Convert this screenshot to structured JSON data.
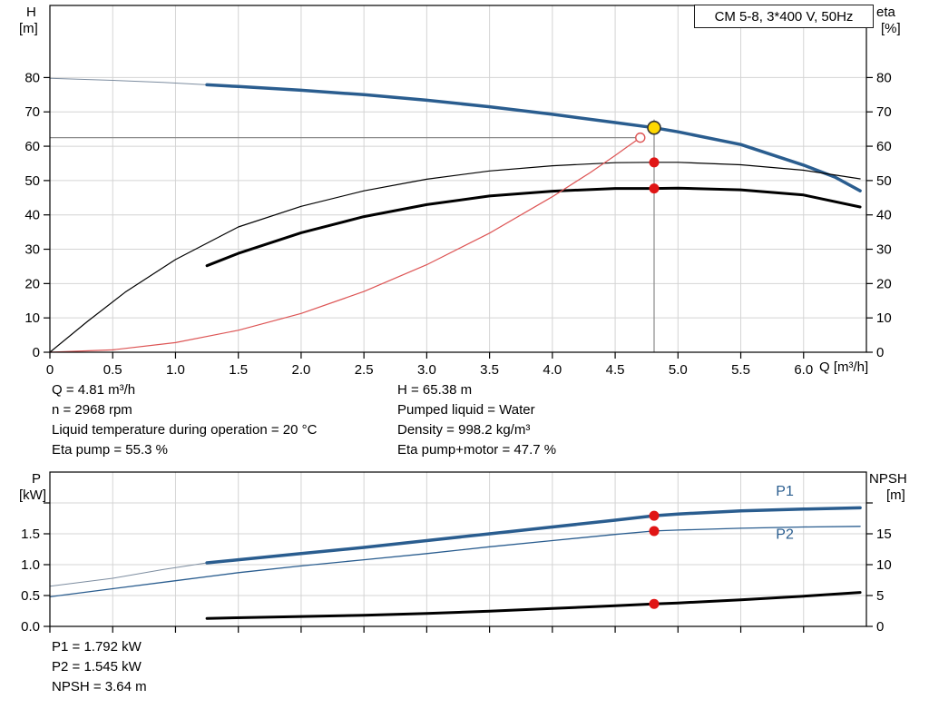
{
  "pump_title": "CM 5-8, 3*400 V, 50Hz",
  "colors": {
    "curve_blue": "#2a5d8f",
    "curve_lead_gray": "#7d8da0",
    "curve_black": "#000000",
    "system_curve_red": "#dd5555",
    "marker_red": "#e01515",
    "marker_yellow": "#ffd800",
    "reference_gray": "#8a8a8a",
    "grid_gray": "#d4d4d4"
  },
  "chart_data": [
    {
      "type": "line",
      "name": "head-efficiency-chart",
      "title": "CM 5-8, 3*400 V, 50Hz",
      "x_axis_label": "Q [m³/h]",
      "x_min": 0,
      "x_max": 6.5,
      "x_ticks": [
        0,
        0.5,
        1,
        1.5,
        2,
        2.5,
        3,
        3.5,
        4,
        4.5,
        5,
        5.5,
        6
      ],
      "x_tick_labels": [
        "0",
        "0.5",
        "1.0",
        "1.5",
        "2.0",
        "2.5",
        "3.0",
        "3.5",
        "4.0",
        "4.5",
        "5.0",
        "5.5",
        "6.0"
      ],
      "left_axis": {
        "label": "H",
        "unit": "[m]",
        "min": 0,
        "max": 101,
        "ticks": [
          0,
          10,
          20,
          30,
          40,
          50,
          60,
          70,
          80
        ],
        "tick_labels": [
          "0",
          "10",
          "20",
          "30",
          "40",
          "50",
          "60",
          "70",
          "80"
        ]
      },
      "right_axis": {
        "label": "eta",
        "unit": "[%]",
        "min": 0,
        "max": 101,
        "ticks": [
          0,
          10,
          20,
          30,
          40,
          50,
          60,
          70,
          80
        ],
        "tick_labels": [
          "0",
          "10",
          "20",
          "30",
          "40",
          "50",
          "60",
          "70",
          "80"
        ]
      },
      "grid": true,
      "legend_position": "none",
      "ref_lines": [
        {
          "orient": "h",
          "axis": "left",
          "value": 62.5,
          "x1": 0,
          "x2": 4.7,
          "color": "#8a8a8a",
          "width": 1.2
        },
        {
          "orient": "v",
          "axis": "left",
          "x": 4.81,
          "v1": 0,
          "v2": 67.8,
          "color": "#8a8a8a",
          "width": 1.2
        }
      ],
      "series": [
        {
          "name": "head-curve-lead",
          "axis": "left",
          "color": "#7d8da0",
          "width": 1,
          "points": [
            [
              0,
              79.8
            ],
            [
              0.5,
              79.2
            ],
            [
              0.9,
              78.6
            ],
            [
              1.25,
              77.9
            ]
          ]
        },
        {
          "name": "head-curve",
          "axis": "left",
          "color": "#2a5d8f",
          "width": 3.5,
          "points": [
            [
              1.25,
              77.9
            ],
            [
              1.5,
              77.4
            ],
            [
              2,
              76.3
            ],
            [
              2.5,
              75
            ],
            [
              3,
              73.4
            ],
            [
              3.5,
              71.5
            ],
            [
              4,
              69.3
            ],
            [
              4.5,
              66.9
            ],
            [
              4.81,
              65.38
            ],
            [
              5,
              64.2
            ],
            [
              5.5,
              60.5
            ],
            [
              6,
              54.5
            ],
            [
              6.25,
              51
            ],
            [
              6.45,
              47
            ]
          ]
        },
        {
          "name": "eta-pump-curve",
          "axis": "right",
          "color": "#000000",
          "width": 1.2,
          "points": [
            [
              0,
              0
            ],
            [
              0.3,
              9
            ],
            [
              0.6,
              17.5
            ],
            [
              1,
              27
            ],
            [
              1.5,
              36.5
            ],
            [
              2,
              42.5
            ],
            [
              2.5,
              47
            ],
            [
              3,
              50.4
            ],
            [
              3.5,
              52.8
            ],
            [
              4,
              54.3
            ],
            [
              4.5,
              55.2
            ],
            [
              4.81,
              55.3
            ],
            [
              5,
              55.3
            ],
            [
              5.5,
              54.6
            ],
            [
              6,
              53
            ],
            [
              6.45,
              50.5
            ]
          ]
        },
        {
          "name": "eta-pump-motor-curve",
          "axis": "right",
          "color": "#000000",
          "width": 3,
          "points": [
            [
              1.25,
              25.2
            ],
            [
              1.5,
              28.8
            ],
            [
              2,
              34.8
            ],
            [
              2.5,
              39.5
            ],
            [
              3,
              43
            ],
            [
              3.5,
              45.5
            ],
            [
              4,
              46.9
            ],
            [
              4.5,
              47.7
            ],
            [
              4.81,
              47.7
            ],
            [
              5,
              47.8
            ],
            [
              5.5,
              47.3
            ],
            [
              6,
              45.8
            ],
            [
              6.45,
              42.3
            ]
          ]
        },
        {
          "name": "system-curve",
          "axis": "left",
          "color": "#dd5555",
          "width": 1.2,
          "points": [
            [
              0,
              0
            ],
            [
              0.5,
              0.7
            ],
            [
              1,
              2.8
            ],
            [
              1.5,
              6.4
            ],
            [
              2,
              11.3
            ],
            [
              2.5,
              17.7
            ],
            [
              3,
              25.5
            ],
            [
              3.5,
              34.7
            ],
            [
              4,
              45.3
            ],
            [
              4.3,
              52.3
            ],
            [
              4.5,
              57.3
            ],
            [
              4.6,
              59.9
            ],
            [
              4.7,
              62.5
            ]
          ]
        }
      ],
      "markers": [
        {
          "name": "requested-duty-point",
          "x": 4.7,
          "value": 62.5,
          "axis": "left",
          "r": 5,
          "fill": "#ffffff",
          "stroke": "#dd5555",
          "stroke_width": 1.4
        },
        {
          "name": "eta-pump-point",
          "x": 4.81,
          "value": 55.3,
          "axis": "right",
          "r": 5.5,
          "fill": "#e01515"
        },
        {
          "name": "eta-pump-motor-point",
          "x": 4.81,
          "value": 47.7,
          "axis": "right",
          "r": 5.5,
          "fill": "#e01515"
        },
        {
          "name": "duty-point",
          "x": 4.81,
          "value": 65.38,
          "axis": "left",
          "r": 7,
          "fill": "#ffd800",
          "stroke": "#333333",
          "stroke_width": 1.6
        }
      ]
    },
    {
      "type": "line",
      "name": "power-npsh-chart",
      "x_min": 0,
      "x_max": 6.5,
      "x_ticks": [
        0,
        0.5,
        1,
        1.5,
        2,
        2.5,
        3,
        3.5,
        4,
        4.5,
        5,
        5.5,
        6
      ],
      "x_tick_labels": null,
      "left_axis": {
        "label": "P",
        "unit": "[kW]",
        "min": 0,
        "max": 2.5,
        "ticks": [
          0,
          0.5,
          1,
          1.5,
          2
        ],
        "tick_labels": [
          "0.0",
          "0.5",
          "1.0",
          "1.5",
          ""
        ]
      },
      "right_axis": {
        "label": "NPSH",
        "unit": "[m]",
        "min": 0,
        "max": 25,
        "ticks": [
          0,
          5,
          10,
          15,
          20
        ],
        "tick_labels": [
          "0",
          "5",
          "10",
          "15",
          ""
        ]
      },
      "grid": true,
      "legend_position": "inline-right",
      "series": [
        {
          "name": "p1-curve-lead",
          "axis": "left",
          "color": "#7d8da0",
          "width": 1,
          "points": [
            [
              0,
              0.65
            ],
            [
              0.5,
              0.78
            ],
            [
              0.9,
              0.92
            ],
            [
              1.25,
              1.03
            ]
          ]
        },
        {
          "name": "p1-curve",
          "axis": "left",
          "color": "#2a5d8f",
          "width": 3.5,
          "points": [
            [
              1.25,
              1.03
            ],
            [
              1.5,
              1.08
            ],
            [
              2,
              1.18
            ],
            [
              2.5,
              1.28
            ],
            [
              3,
              1.39
            ],
            [
              3.5,
              1.5
            ],
            [
              4,
              1.61
            ],
            [
              4.5,
              1.72
            ],
            [
              4.81,
              1.792
            ],
            [
              5,
              1.82
            ],
            [
              5.5,
              1.87
            ],
            [
              6,
              1.9
            ],
            [
              6.45,
              1.92
            ]
          ]
        },
        {
          "name": "p2-curve",
          "axis": "left",
          "color": "#2a5d8f",
          "width": 1.3,
          "points": [
            [
              0,
              0.48
            ],
            [
              0.5,
              0.61
            ],
            [
              1,
              0.74
            ],
            [
              1.5,
              0.87
            ],
            [
              2,
              0.98
            ],
            [
              2.5,
              1.08
            ],
            [
              3,
              1.18
            ],
            [
              3.5,
              1.29
            ],
            [
              4,
              1.39
            ],
            [
              4.5,
              1.49
            ],
            [
              4.81,
              1.545
            ],
            [
              5,
              1.56
            ],
            [
              5.5,
              1.59
            ],
            [
              6,
              1.61
            ],
            [
              6.45,
              1.62
            ]
          ]
        },
        {
          "name": "npsh-curve",
          "axis": "right",
          "color": "#000000",
          "width": 3,
          "points": [
            [
              1.25,
              1.3
            ],
            [
              2,
              1.6
            ],
            [
              2.5,
              1.8
            ],
            [
              3,
              2.1
            ],
            [
              3.5,
              2.45
            ],
            [
              4,
              2.9
            ],
            [
              4.5,
              3.35
            ],
            [
              4.81,
              3.64
            ],
            [
              5,
              3.8
            ],
            [
              5.5,
              4.3
            ],
            [
              6,
              4.9
            ],
            [
              6.45,
              5.5
            ]
          ]
        }
      ],
      "markers": [
        {
          "name": "p1-point",
          "x": 4.81,
          "value": 1.792,
          "axis": "left",
          "r": 5.5,
          "fill": "#e01515"
        },
        {
          "name": "p2-point",
          "x": 4.81,
          "value": 1.545,
          "axis": "left",
          "r": 5.5,
          "fill": "#e01515"
        },
        {
          "name": "npsh-point",
          "x": 4.81,
          "value": 3.64,
          "axis": "right",
          "r": 5.5,
          "fill": "#e01515"
        }
      ],
      "series_labels": [
        {
          "text": "P1",
          "x": 5.78,
          "value": 2.12,
          "axis": "left",
          "color": "#2a5d8f"
        },
        {
          "text": "P2",
          "x": 5.78,
          "value": 1.42,
          "axis": "left",
          "color": "#2a5d8f"
        }
      ]
    }
  ],
  "annotations": {
    "left_column": [
      "Q = 4.81 m³/h",
      "n = 2968 rpm",
      "Liquid temperature during operation = 20 °C",
      "Eta pump = 55.3 %"
    ],
    "right_column": [
      "H = 65.38 m",
      "Pumped liquid = Water",
      "Density = 998.2 kg/m³",
      "Eta pump+motor = 47.7 %"
    ],
    "power_block": [
      "P1 = 1.792 kW",
      "P2 = 1.545 kW",
      "NPSH = 3.64 m"
    ]
  }
}
